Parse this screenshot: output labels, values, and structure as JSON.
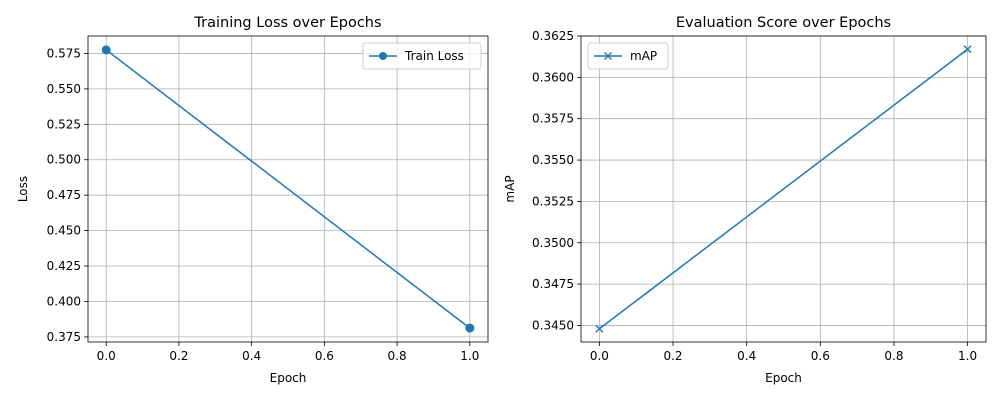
{
  "chart_data": [
    {
      "type": "line",
      "title": "Training Loss over Epochs",
      "xlabel": "Epoch",
      "ylabel": "Loss",
      "x": [
        0.0,
        1.0
      ],
      "series": [
        {
          "name": "Train Loss",
          "values": [
            0.5775,
            0.3812
          ],
          "color": "#1f77b4",
          "marker": "circle"
        }
      ],
      "xlim": [
        -0.05,
        1.05
      ],
      "ylim": [
        0.3714,
        0.5873
      ],
      "xticks": [
        0.0,
        0.2,
        0.4,
        0.6,
        0.8,
        1.0
      ],
      "xtick_labels": [
        "0.0",
        "0.2",
        "0.4",
        "0.6",
        "0.8",
        "1.0"
      ],
      "yticks": [
        0.375,
        0.4,
        0.425,
        0.45,
        0.475,
        0.5,
        0.525,
        0.55,
        0.575
      ],
      "ytick_labels": [
        "0.375",
        "0.400",
        "0.425",
        "0.450",
        "0.475",
        "0.500",
        "0.525",
        "0.550",
        "0.575"
      ],
      "grid": true,
      "legend": "upper right"
    },
    {
      "type": "line",
      "title": "Evaluation Score over Epochs",
      "xlabel": "Epoch",
      "ylabel": "mAP",
      "x": [
        0.0,
        1.0
      ],
      "series": [
        {
          "name": "mAP",
          "values": [
            0.3448,
            0.3617
          ],
          "color": "#1f77b4",
          "marker": "x"
        }
      ],
      "xlim": [
        -0.05,
        1.05
      ],
      "ylim": [
        0.344,
        0.3625
      ],
      "xticks": [
        0.0,
        0.2,
        0.4,
        0.6,
        0.8,
        1.0
      ],
      "xtick_labels": [
        "0.0",
        "0.2",
        "0.4",
        "0.6",
        "0.8",
        "1.0"
      ],
      "yticks": [
        0.345,
        0.3475,
        0.35,
        0.3525,
        0.355,
        0.3575,
        0.36,
        0.3625
      ],
      "ytick_labels": [
        "0.3450",
        "0.3475",
        "0.3500",
        "0.3525",
        "0.3550",
        "0.3575",
        "0.3600",
        "0.3625"
      ],
      "grid": true,
      "legend": "upper left"
    }
  ]
}
